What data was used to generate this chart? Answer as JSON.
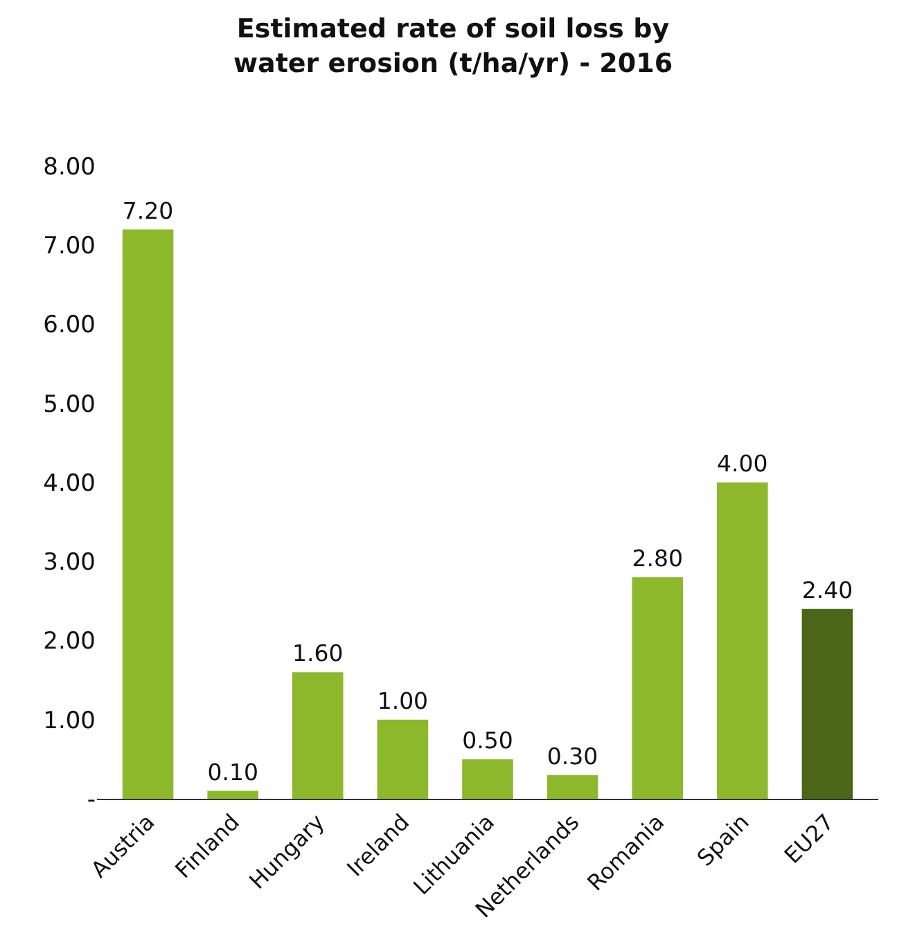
{
  "chart_data": {
    "type": "bar",
    "title": "Estimated rate of soil loss by\nwater erosion (t/ha/yr) - 2016",
    "categories": [
      "Austria",
      "Finland",
      "Hungary",
      "Ireland",
      "Lithuania",
      "Netherlands",
      "Romania",
      "Spain",
      "EU27"
    ],
    "values": [
      7.2,
      0.1,
      1.6,
      1.0,
      0.5,
      0.3,
      2.8,
      4.0,
      2.4
    ],
    "value_labels": [
      "7.20",
      "0.10",
      "1.60",
      "1.00",
      "0.50",
      "0.30",
      "2.80",
      "4.00",
      "2.40"
    ],
    "colors": [
      "#8cb92b",
      "#8cb92b",
      "#8cb92b",
      "#8cb92b",
      "#8cb92b",
      "#8cb92b",
      "#8cb92b",
      "#8cb92b",
      "#4a6616"
    ],
    "ylim": [
      0,
      8
    ],
    "yticks": [
      {
        "value": 0,
        "label": "-"
      },
      {
        "value": 1,
        "label": "1.00"
      },
      {
        "value": 2,
        "label": "2.00"
      },
      {
        "value": 3,
        "label": "3.00"
      },
      {
        "value": 4,
        "label": "4.00"
      },
      {
        "value": 5,
        "label": "5.00"
      },
      {
        "value": 6,
        "label": "6.00"
      },
      {
        "value": 7,
        "label": "7.00"
      },
      {
        "value": 8,
        "label": "8.00"
      }
    ],
    "grid": false,
    "legend": false
  }
}
